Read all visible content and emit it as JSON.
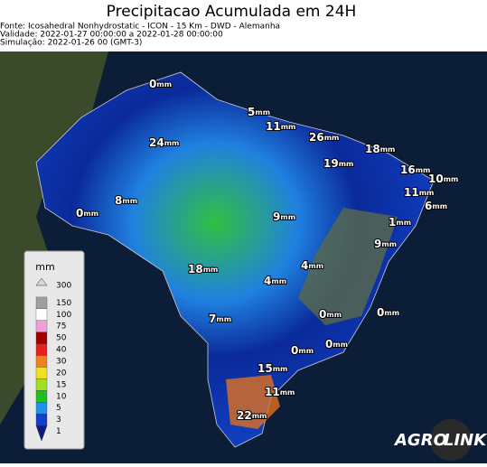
{
  "header": {
    "title": "Precipitacao Acumulada em 24H",
    "lines": [
      "Fonte: Icosahedral Nonhydrostatic - ICON - 15 Km - DWD - Alemanha",
      "Validade: 2022-01-27 00:00:00 a 2022-01-28 00:00:00",
      "Simulação: 2022-01-26 00 (GMT-3)"
    ]
  },
  "map": {
    "unit": "mm",
    "labels": [
      "0",
      "5",
      "11",
      "26",
      "18",
      "24",
      "19",
      "16",
      "10",
      "11",
      "6",
      "8",
      "0",
      "1",
      "9",
      "9",
      "4",
      "18",
      "4",
      "7",
      "0",
      "0",
      "0",
      "0",
      "15",
      "11",
      "22"
    ]
  },
  "legend": {
    "title": "mm",
    "ticks": [
      {
        "label": "300",
        "color": "#d8d8d8"
      },
      {
        "label": "150",
        "color": "#a0a0a0"
      },
      {
        "label": "100",
        "color": "#ffffff"
      },
      {
        "label": "75",
        "color": "#f0a0d8"
      },
      {
        "label": "50",
        "color": "#a00000"
      },
      {
        "label": "40",
        "color": "#e82020"
      },
      {
        "label": "30",
        "color": "#f08020"
      },
      {
        "label": "20",
        "color": "#f0e020"
      },
      {
        "label": "15",
        "color": "#a0e020"
      },
      {
        "label": "10",
        "color": "#20c020"
      },
      {
        "label": "5",
        "color": "#2090f0"
      },
      {
        "label": "3",
        "color": "#1040d0"
      },
      {
        "label": "1",
        "color": "#0a1a80"
      }
    ]
  },
  "logo": {
    "left": "AGRO",
    "right": "LINK"
  }
}
